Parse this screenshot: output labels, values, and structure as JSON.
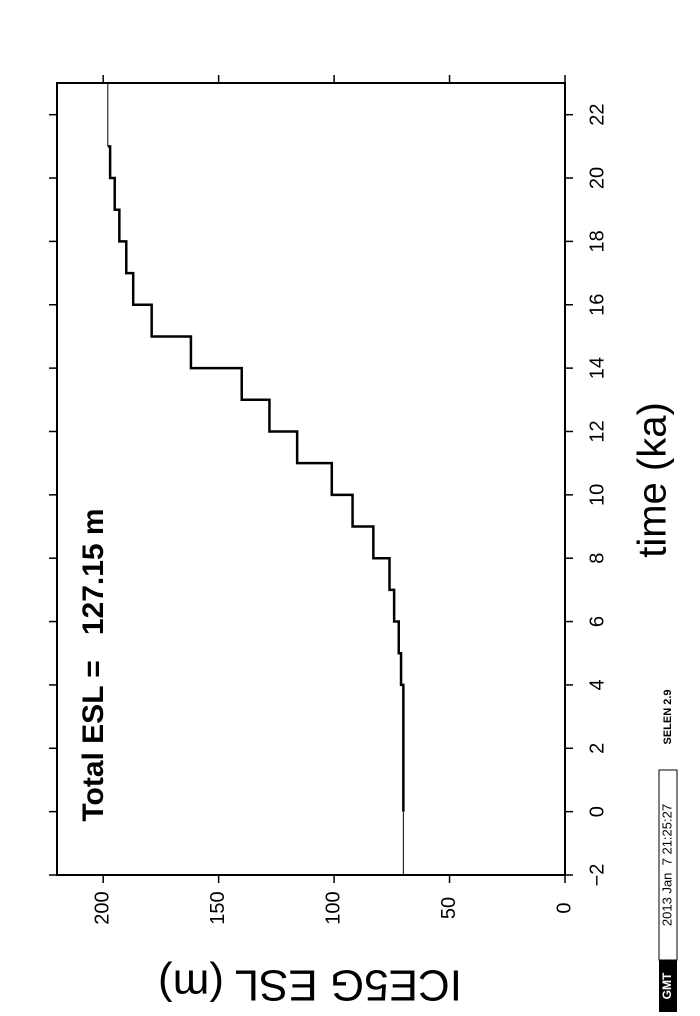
{
  "chart_data": {
    "type": "step",
    "x_label": "time (ka)",
    "y_label": "ICE5G ESL (m)",
    "annotation": "Total ESL =   127.15 m",
    "x": [
      0,
      1,
      2,
      3,
      4,
      5,
      6,
      7,
      8,
      9,
      10,
      11,
      12,
      13,
      14,
      15,
      16,
      17,
      18,
      19,
      20,
      21
    ],
    "series": [
      {
        "color": "#000000",
        "values": [
          70,
          70,
          70,
          70,
          71,
          72,
          74,
          76,
          83,
          92,
          101,
          116,
          128,
          140,
          162,
          179,
          187,
          190,
          193,
          195,
          197,
          198
        ]
      }
    ],
    "xlim": [
      -2,
      23
    ],
    "xticks": [
      {
        "value": -2,
        "label": "−2"
      },
      0,
      2,
      4,
      6,
      8,
      10,
      12,
      14,
      16,
      18,
      20,
      22
    ],
    "ylim": [
      0,
      220
    ],
    "yticks": [
      0,
      50,
      100,
      150,
      200
    ],
    "stamp": {
      "logo": "GMT",
      "time": "2013 Jan  7 21:25:27",
      "label": "SELEN 2.9"
    }
  }
}
